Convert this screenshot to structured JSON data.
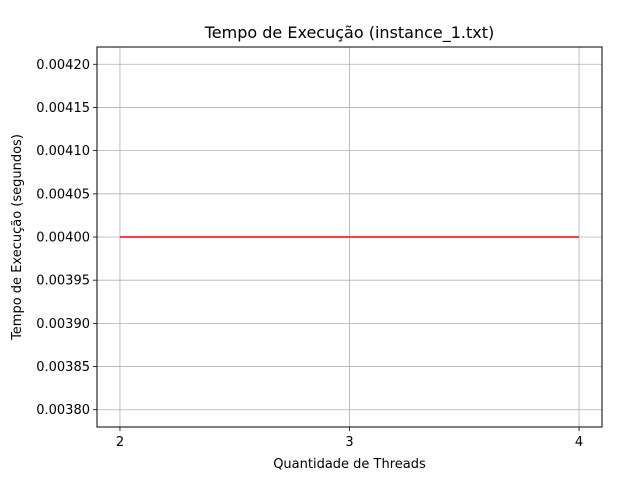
{
  "chart_data": {
    "type": "line",
    "title": "Tempo de Execução (instance_1.txt)",
    "xlabel": "Quantidade de Threads",
    "ylabel": "Tempo de Execução (segundos)",
    "xlim": [
      1.9,
      4.1
    ],
    "ylim": [
      0.00378,
      0.00422
    ],
    "xticks": [
      2,
      3,
      4
    ],
    "xtick_labels": [
      "2",
      "3",
      "4"
    ],
    "yticks": [
      0.0038,
      0.00385,
      0.0039,
      0.00395,
      0.004,
      0.00405,
      0.0041,
      0.00415,
      0.0042
    ],
    "ytick_labels": [
      "0.00380",
      "0.00385",
      "0.00390",
      "0.00395",
      "0.00400",
      "0.00405",
      "0.00410",
      "0.00415",
      "0.00420"
    ],
    "grid": true,
    "series": [
      {
        "x": [
          2,
          3,
          4
        ],
        "y": [
          0.004,
          0.004,
          0.004
        ],
        "color": "#ff0000"
      }
    ]
  }
}
